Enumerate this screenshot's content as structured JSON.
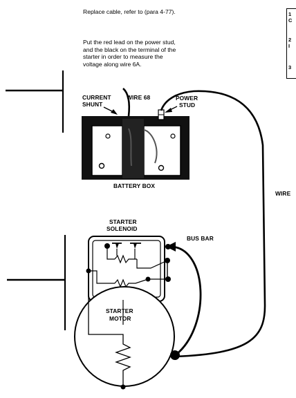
{
  "instructions": {
    "line1": "Replace cable, refer to (para 4-77).",
    "line2": "Put the red lead on the power stud,",
    "line3": "and the black on the terminal of the",
    "line4": "starter in order to measure the",
    "line5": "voltage along wire 6A."
  },
  "labels": {
    "current_shunt_1": "CURRENT",
    "current_shunt_2": "SHUNT",
    "wire68": "WIRE 68",
    "power_stud_1": "POWER",
    "power_stud_2": "STUD",
    "battery_box": "BATTERY BOX",
    "wire": "WIRE",
    "starter_solenoid_1": "STARTER",
    "starter_solenoid_2": "SOLENOID",
    "bus_bar": "BUS BAR",
    "starter_motor_1": "STARTER",
    "starter_motor_2": "MOTOR"
  },
  "corner_table": {
    "row1": "1",
    "row1b": "C",
    "row2": "2",
    "row2b": "I",
    "row3": "3"
  }
}
